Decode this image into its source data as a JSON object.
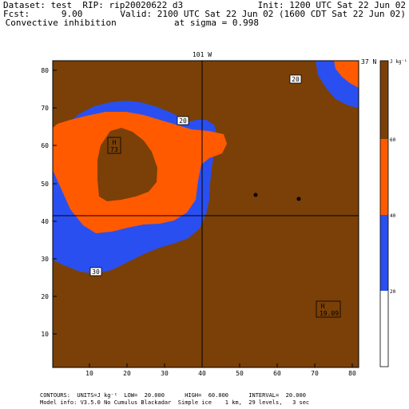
{
  "header": {
    "dataset_line": "Dataset: test  RIP: rip20020622 d3",
    "init_line": "Init: 1200 UTC Sat 22 Jun 02",
    "fcst_line": "Fcst:      9.00",
    "valid_line": "Valid: 2100 UTC Sat 22 Jun 02 (1600 CDT Sat 22 Jun 02)",
    "field_line": " Convective inhibition",
    "level_line": "at sigma = 0.998"
  },
  "map": {
    "top_label": "101 W",
    "right_label": "37 N",
    "x_ticks": [
      "10",
      "20",
      "30",
      "40",
      "50",
      "60",
      "70",
      "80"
    ],
    "y_ticks": [
      "10",
      "20",
      "30",
      "40",
      "50",
      "60",
      "70",
      "80"
    ],
    "contour_labels": [
      "20",
      "20",
      "30"
    ],
    "high_markers": [
      {
        "letter": "H",
        "value": "73"
      },
      {
        "letter": "H",
        "value": "19.09"
      }
    ]
  },
  "colorbar": {
    "unit": "J kg⁻¹",
    "levels": [
      "20",
      "40",
      "60"
    ],
    "colors": {
      "low": "#ffffff",
      "mid1": "#2a4ff0",
      "mid2": "#ff5a00",
      "high": "#7a4007"
    }
  },
  "footer": {
    "contours_line": "CONTOURS:  UNITS=J kg⁻¹  LOW=  20.000      HIGH=  60.000      INTERVAL=  20.000",
    "model_line": "Model info: V3.5.0 No Cumulus Blackadar  Simple ice    1 km,  29 levels,   3 sec"
  }
}
